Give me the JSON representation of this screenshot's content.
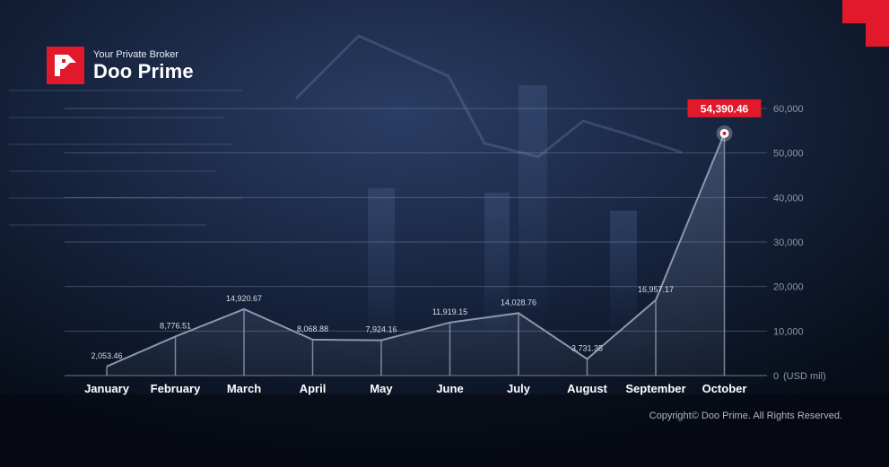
{
  "brand": {
    "tagline": "Your Private Broker",
    "name": "Doo Prime",
    "accent_color": "#e2182b"
  },
  "footer": {
    "copyright": "Copyright© Doo Prime. All Rights Reserved."
  },
  "chart_data": {
    "type": "area",
    "title": "",
    "xlabel": "",
    "ylabel": "",
    "y_unit_label": "(USD mil)",
    "categories": [
      "January",
      "February",
      "March",
      "April",
      "May",
      "June",
      "July",
      "August",
      "September",
      "October"
    ],
    "values": [
      2053.46,
      8776.51,
      14920.67,
      8068.88,
      7924.16,
      11919.15,
      14028.76,
      3731.35,
      16957.17,
      54390.46
    ],
    "value_labels": [
      "2,053.46",
      "8,776.51",
      "14,920.67",
      "8,068.88",
      "7,924.16",
      "11,919.15",
      "14,028.76",
      "3,731.35",
      "16,957.17",
      ""
    ],
    "highlight": {
      "index": 9,
      "label": "54,390.46",
      "color": "#e2182b"
    },
    "ylim": [
      0,
      60000
    ],
    "yticks": [
      0,
      10000,
      20000,
      30000,
      40000,
      50000,
      60000
    ],
    "ytick_labels": [
      "0",
      "10,000",
      "20,000",
      "30,000",
      "40,000",
      "50,000",
      "60,000"
    ],
    "grid": true,
    "y_axis_side": "right",
    "line_color": "#8a98ae"
  }
}
